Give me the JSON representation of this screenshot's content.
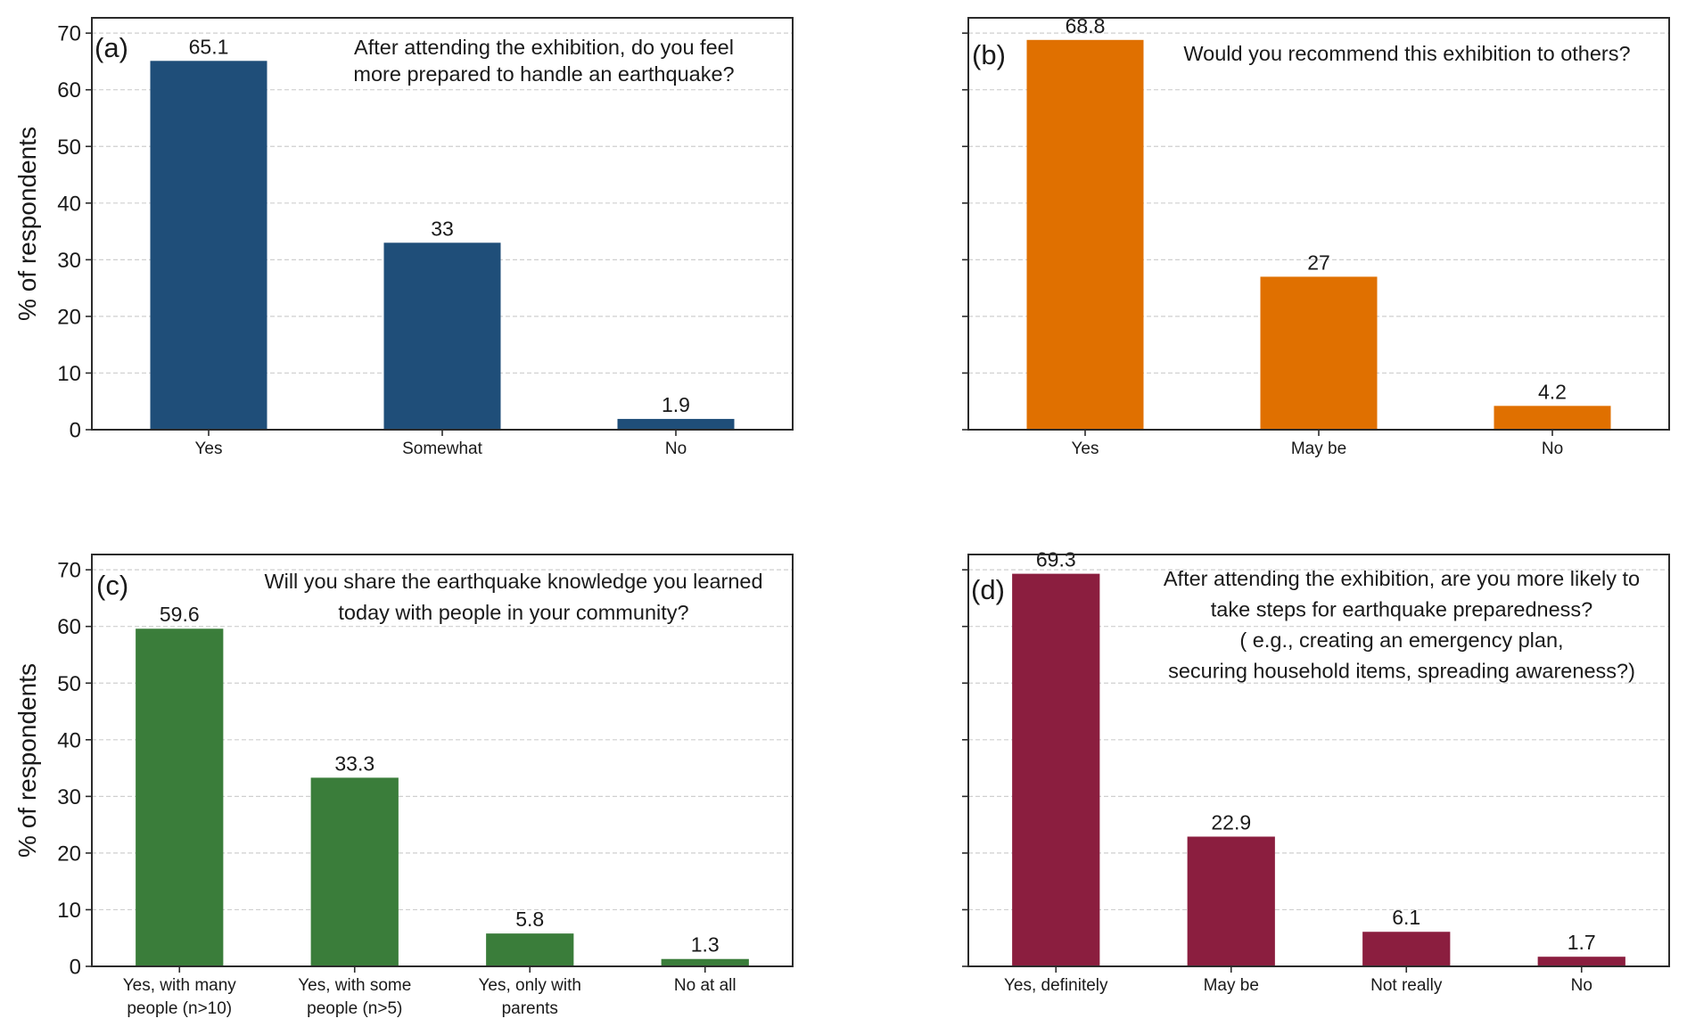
{
  "chart_data": [
    {
      "type": "bar",
      "panel": "(a)",
      "title": [
        "After attending the exhibition, do you feel",
        "more prepared  to handle an earthquake?"
      ],
      "categories": [
        [
          "Yes"
        ],
        [
          "Somewhat"
        ],
        [
          "No"
        ]
      ],
      "values": [
        65.1,
        33,
        1.9
      ],
      "value_labels": [
        "65.1",
        "33",
        "1.9"
      ],
      "color": "#1f4e79",
      "xlabel": "",
      "ylabel": "% of respondents",
      "ylim": [
        0,
        72.7
      ],
      "yticks": [
        0,
        10,
        20,
        30,
        40,
        50,
        60,
        70
      ],
      "show_ytick_labels": true,
      "grid": "y-dashed"
    },
    {
      "type": "bar",
      "panel": "(b)",
      "title": [
        "Would you recommend this exhibition to others?"
      ],
      "categories": [
        [
          "Yes"
        ],
        [
          "May be"
        ],
        [
          "No"
        ]
      ],
      "values": [
        68.8,
        27,
        4.2
      ],
      "value_labels": [
        "68.8",
        "27",
        "4.2"
      ],
      "color": "#e07000",
      "xlabel": "",
      "ylabel": "",
      "ylim": [
        0,
        72.7
      ],
      "yticks": [
        0,
        10,
        20,
        30,
        40,
        50,
        60,
        70
      ],
      "show_ytick_labels": false,
      "grid": "y-dashed"
    },
    {
      "type": "bar",
      "panel": "(c)",
      "title": [
        "Will you share the earthquake knowledge you learned",
        "today with people in your community?"
      ],
      "categories": [
        [
          "Yes, with many",
          "people (n>10)"
        ],
        [
          "Yes, with some",
          "people (n>5)"
        ],
        [
          "Yes, only with",
          "parents"
        ],
        [
          "No at all"
        ]
      ],
      "values": [
        59.6,
        33.3,
        5.8,
        1.3
      ],
      "value_labels": [
        "59.6",
        "33.3",
        "5.8",
        "1.3"
      ],
      "color": "#3a7d3a",
      "xlabel": "",
      "ylabel": "% of respondents",
      "ylim": [
        0,
        72.7
      ],
      "yticks": [
        0,
        10,
        20,
        30,
        40,
        50,
        60,
        70
      ],
      "show_ytick_labels": true,
      "grid": "y-dashed"
    },
    {
      "type": "bar",
      "panel": "(d)",
      "title": [
        "After attending the exhibition, are you more likely to",
        "take steps for earthquake preparedness?",
        "( e.g., creating an emergency plan,",
        "securing household items, spreading awareness?)"
      ],
      "categories": [
        [
          "Yes, definitely"
        ],
        [
          "May be"
        ],
        [
          "Not really"
        ],
        [
          "No"
        ]
      ],
      "values": [
        69.3,
        22.9,
        6.1,
        1.7
      ],
      "value_labels": [
        "69.3",
        "22.9",
        "6.1",
        "1.7"
      ],
      "color": "#8b1e3f",
      "xlabel": "",
      "ylabel": "",
      "ylim": [
        0,
        72.7
      ],
      "yticks": [
        0,
        10,
        20,
        30,
        40,
        50,
        60,
        70
      ],
      "show_ytick_labels": false,
      "grid": "y-dashed"
    }
  ]
}
